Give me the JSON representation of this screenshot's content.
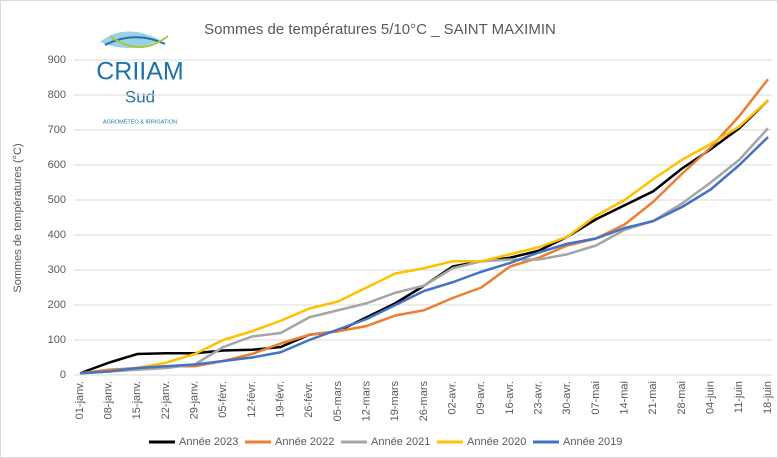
{
  "chart_data": {
    "type": "line",
    "title": "Sommes de températures 5/10°C _ SAINT MAXIMIN",
    "y_label": "Sommes de températures (°C)",
    "logo": {
      "name": "CRIIAM",
      "region": "Sud",
      "tagline": "AGROMÉTÉO & IRRIGATION"
    },
    "categories": [
      "01-janv.",
      "08-janv.",
      "15-janv.",
      "22-janv.",
      "29-janv.",
      "05-févr.",
      "12-févr.",
      "19-févr.",
      "26-févr.",
      "05-mars",
      "12-mars",
      "19-mars",
      "26-mars",
      "02-avr.",
      "09-avr.",
      "16-avr.",
      "23-avr.",
      "30-avr.",
      "07-mai",
      "14-mai",
      "21-mai",
      "28-mai",
      "04-juin",
      "11-juin",
      "18-juin"
    ],
    "series": [
      {
        "name": "Année 2023",
        "color": "#000000",
        "values": [
          5,
          35,
          60,
          62,
          62,
          70,
          72,
          80,
          115,
          125,
          165,
          205,
          255,
          310,
          325,
          335,
          355,
          395,
          445,
          485,
          525,
          590,
          645,
          705,
          785
        ]
      },
      {
        "name": "Année 2022",
        "color": "#ed7d31",
        "values": [
          5,
          15,
          20,
          25,
          25,
          40,
          60,
          90,
          115,
          125,
          140,
          170,
          185,
          220,
          250,
          310,
          335,
          370,
          390,
          430,
          495,
          575,
          650,
          740,
          845
        ]
      },
      {
        "name": "Année 2021",
        "color": "#a5a5a5",
        "values": [
          5,
          10,
          15,
          20,
          30,
          80,
          110,
          120,
          165,
          185,
          205,
          235,
          255,
          305,
          325,
          330,
          330,
          345,
          370,
          415,
          440,
          490,
          550,
          615,
          705
        ]
      },
      {
        "name": "Année 2020",
        "color": "#ffc000",
        "values": [
          5,
          10,
          20,
          35,
          60,
          100,
          125,
          155,
          190,
          210,
          250,
          290,
          305,
          325,
          325,
          345,
          365,
          395,
          455,
          500,
          560,
          615,
          660,
          710,
          785
        ]
      },
      {
        "name": "Année 2019",
        "color": "#4472c4",
        "values": [
          5,
          10,
          20,
          25,
          30,
          40,
          50,
          65,
          100,
          130,
          160,
          200,
          240,
          265,
          295,
          320,
          350,
          375,
          390,
          420,
          440,
          480,
          530,
          600,
          680
        ]
      }
    ],
    "ylim": [
      0,
      900
    ],
    "yticks": [
      0,
      100,
      200,
      300,
      400,
      500,
      600,
      700,
      800,
      900
    ],
    "grid": true,
    "legend": "bottom"
  }
}
